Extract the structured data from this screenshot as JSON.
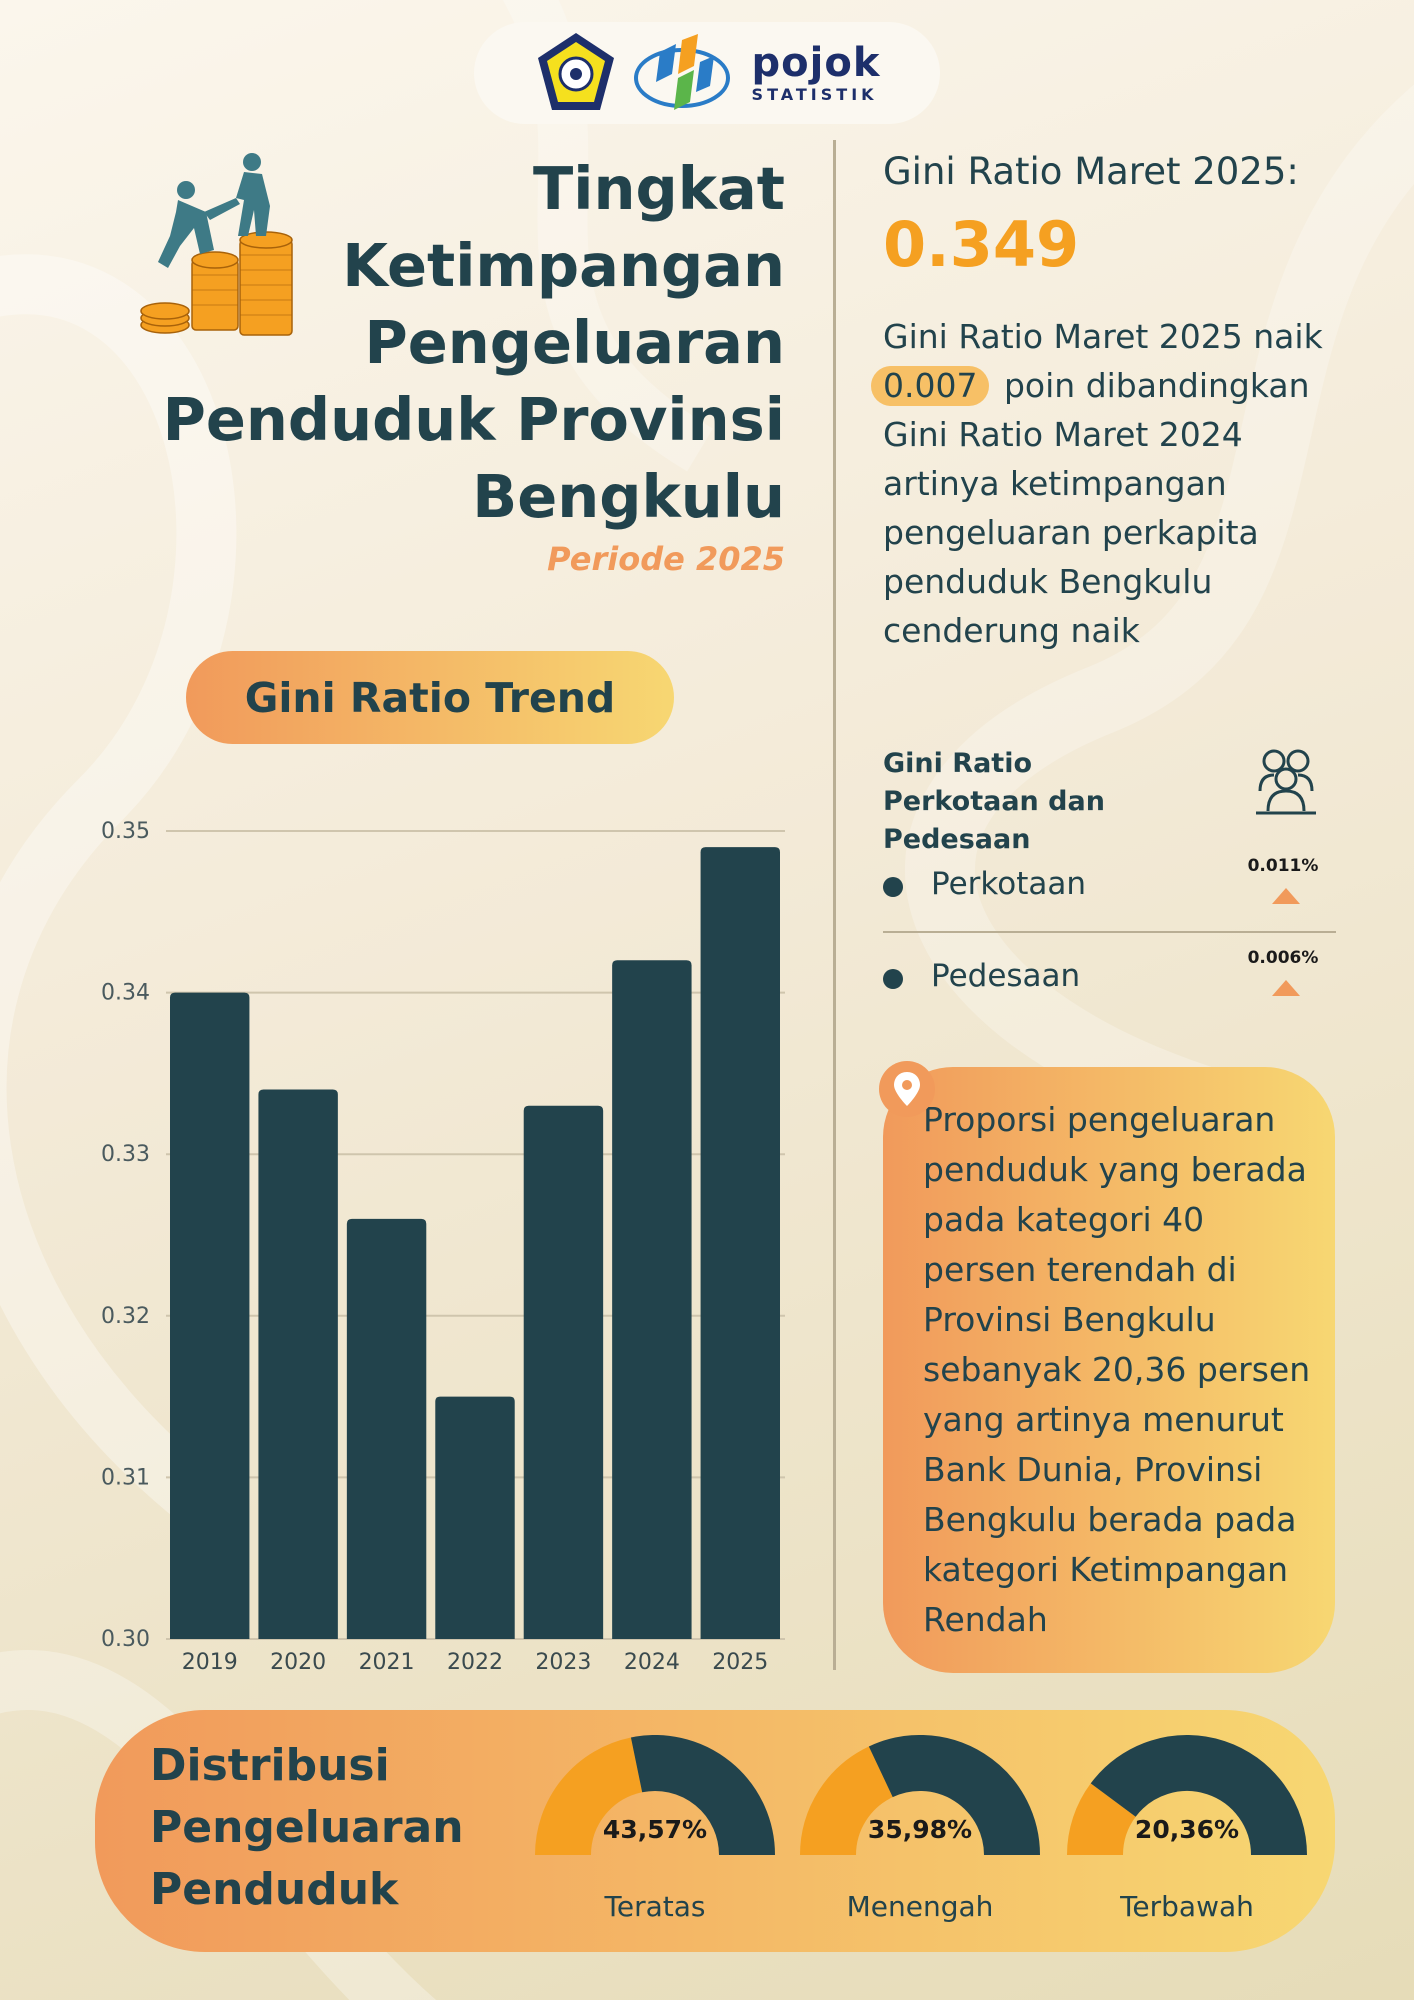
{
  "header": {
    "brand_word": "pojok",
    "brand_sub": "STATISTIK",
    "icons": [
      "provincial-emblem-icon",
      "bps-logo-icon"
    ]
  },
  "title": {
    "lines": [
      "Tingkat",
      "Ketimpangan",
      "Pengeluaran",
      "Penduduk Provinsi",
      "Bengkulu"
    ],
    "periode": "Periode 2025"
  },
  "summary": {
    "heading": "Gini Ratio Maret 2025:",
    "value": "0.349",
    "desc_before": "Gini Ratio Maret 2025 naik",
    "highlight": "0.007",
    "desc_after": "poin dibandingkan Gini Ratio Maret 2024 artinya ketimpangan pengeluaran perkapita penduduk Bengkulu cenderung naik"
  },
  "urban_rural": {
    "title": "Gini Ratio Perkotaan dan Pedesaan",
    "items": [
      {
        "label": "Perkotaan",
        "value": "0.011%",
        "trend": "up"
      },
      {
        "label": "Pedesaan",
        "value": "0.006%",
        "trend": "up"
      }
    ]
  },
  "callout": {
    "text": "Proporsi pengeluaran penduduk yang berada pada kategori 40 persen terendah di Provinsi Bengkulu sebanyak 20,36 persen yang artinya menurut Bank Dunia, Provinsi Bengkulu berada pada kategori Ketimpangan Rendah"
  },
  "trend_label": "Gini Ratio Trend",
  "chart_data": {
    "type": "bar",
    "categories": [
      "2019",
      "2020",
      "2021",
      "2022",
      "2023",
      "2024",
      "2025"
    ],
    "values": [
      0.34,
      0.334,
      0.326,
      0.315,
      0.333,
      0.342,
      0.349
    ],
    "yticks": [
      "0.30",
      "0.31",
      "0.32",
      "0.33",
      "0.34",
      "0.35"
    ],
    "ylim": [
      0.3,
      0.35
    ],
    "grid": true,
    "bar_color": "#22434c"
  },
  "distribution": {
    "title_lines": [
      "Distribusi",
      "Pengeluaran",
      "Penduduk"
    ],
    "gauges": [
      {
        "label": "Teratas",
        "display": "43,57%",
        "value": 43.57
      },
      {
        "label": "Menengah",
        "display": "35,98%",
        "value": 35.98
      },
      {
        "label": "Terbawah",
        "display": "20,36%",
        "value": 20.36
      }
    ]
  },
  "colors": {
    "dark_teal": "#22434c",
    "accent_orange": "#f5a021",
    "gradient_start": "#f19a5b",
    "gradient_end": "#f7d772"
  }
}
